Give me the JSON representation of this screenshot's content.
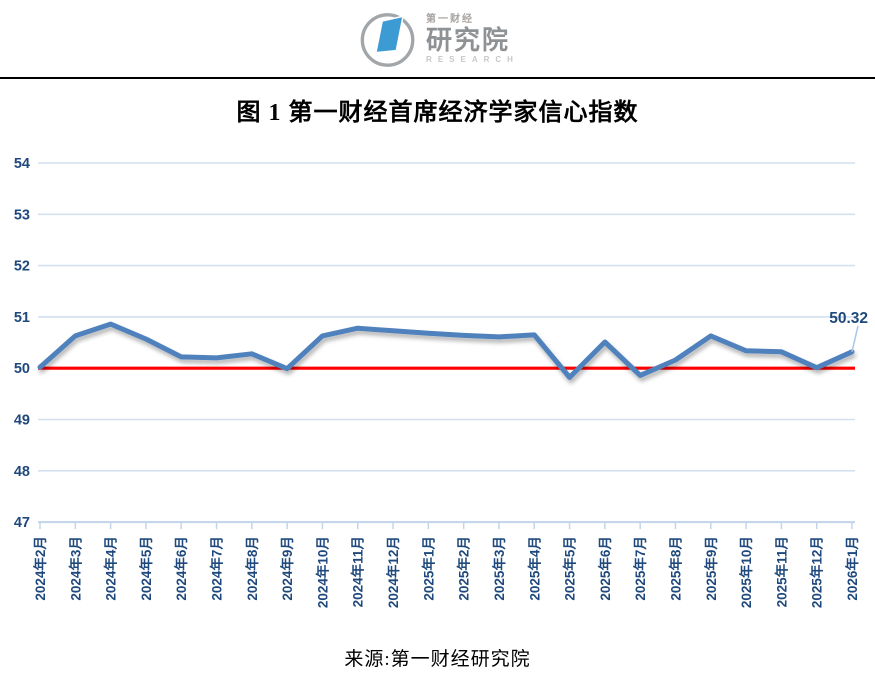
{
  "header": {
    "logo": {
      "brand_cn_small": "第一财经",
      "brand_cn_large": "研究院",
      "brand_en": "RESEARCH",
      "mark_color": "#3d9bd4",
      "ring_color": "#a2a6a9"
    }
  },
  "title": "图 1 第一财经首席经济学家信心指数",
  "source": "来源:第一财经研究院",
  "chart_data": {
    "type": "line",
    "title": "图 1 第一财经首席经济学家信心指数",
    "categories": [
      "2024年2月",
      "2024年3月",
      "2024年4月",
      "2024年5月",
      "2024年6月",
      "2024年7月",
      "2024年8月",
      "2024年9月",
      "2024年10月",
      "2024年11月",
      "2024年12月",
      "2025年1月",
      "2025年2月",
      "2025年3月",
      "2025年4月",
      "2025年5月",
      "2025年6月",
      "2025年7月",
      "2025年8月",
      "2025年9月",
      "2025年10月",
      "2025年11月",
      "2025年12月",
      "2026年1月"
    ],
    "series": [
      {
        "name": "第一财经首席经济学家信心指数",
        "color": "#4f81bd",
        "values": [
          50.02,
          50.63,
          50.86,
          50.57,
          50.22,
          50.2,
          50.28,
          49.99,
          50.63,
          50.78,
          50.73,
          50.68,
          50.64,
          50.61,
          50.65,
          49.82,
          50.51,
          49.86,
          50.16,
          50.63,
          50.34,
          50.32,
          50.01,
          50.32
        ]
      }
    ],
    "benchmark_line": {
      "value": 50,
      "color": "#ff0000"
    },
    "last_value_label": "50.32",
    "ylim": [
      47,
      54
    ],
    "ytick_step": 1,
    "yticks": [
      "47",
      "48",
      "49",
      "50",
      "51",
      "52",
      "53",
      "54"
    ],
    "grid": true,
    "legend_position": "none",
    "axis_label_color": "#1f497d",
    "gridline_color": "#d3e0f0",
    "axis_line_color": "#c3d5ea",
    "leader_line_color": "#a8c6e8"
  }
}
